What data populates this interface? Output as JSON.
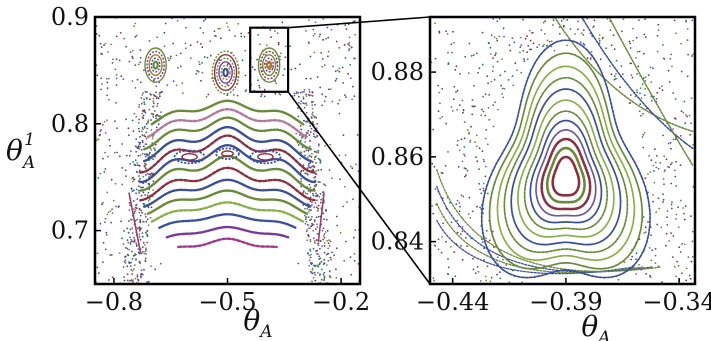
{
  "chart_data": [
    {
      "type": "scatter",
      "panel": "left",
      "description_kind": "Poincare section scatter (multiple colored orbit series)",
      "xlabel": "θ_A",
      "ylabel": "θ^1_A",
      "xlim": [
        -0.85,
        -0.15
      ],
      "ylim": [
        0.65,
        0.9
      ],
      "xticks": [
        {
          "value": -0.8,
          "label": "−0.8"
        },
        {
          "value": -0.5,
          "label": "−0.5"
        },
        {
          "value": -0.2,
          "label": "−0.2"
        }
      ],
      "yticks": [
        {
          "value": 0.9,
          "label": "0.9"
        },
        {
          "value": 0.8,
          "label": "0.8"
        },
        {
          "value": 0.7,
          "label": "0.7"
        }
      ],
      "grid": false,
      "islands": [
        {
          "center": [
            -0.69,
            0.855
          ],
          "rx": 0.028,
          "ry": 0.016,
          "rings": 5
        },
        {
          "center": [
            -0.505,
            0.848
          ],
          "rx": 0.035,
          "ry": 0.02,
          "rings": 6
        },
        {
          "center": [
            -0.39,
            0.855
          ],
          "rx": 0.028,
          "ry": 0.016,
          "rings": 5
        }
      ],
      "bands": [
        {
          "y": 0.815,
          "amp": 0.006,
          "x_range": [
            -0.7,
            -0.3
          ],
          "color": "#6a8a3a"
        },
        {
          "y": 0.806,
          "amp": 0.007,
          "x_range": [
            -0.71,
            -0.29
          ],
          "color": "#b07a9a"
        },
        {
          "y": 0.797,
          "amp": 0.008,
          "x_range": [
            -0.72,
            -0.28
          ],
          "color": "#6a8a3a"
        },
        {
          "y": 0.787,
          "amp": 0.009,
          "x_range": [
            -0.72,
            -0.28
          ],
          "color": "#3a4e9a"
        },
        {
          "y": 0.778,
          "amp": 0.01,
          "x_range": [
            -0.73,
            -0.27
          ],
          "color": "#8a3040"
        },
        {
          "y": 0.769,
          "amp": 0.01,
          "x_range": [
            -0.73,
            -0.27
          ],
          "color": "#3a4e9a"
        },
        {
          "y": 0.76,
          "amp": 0.009,
          "x_range": [
            -0.73,
            -0.27
          ],
          "color": "#6a8a3a"
        },
        {
          "y": 0.75,
          "amp": 0.008,
          "x_range": [
            -0.73,
            -0.27
          ],
          "color": "#8a3040"
        },
        {
          "y": 0.741,
          "amp": 0.006,
          "x_range": [
            -0.72,
            -0.28
          ],
          "color": "#3a4e9a"
        },
        {
          "y": 0.732,
          "amp": 0.005,
          "x_range": [
            -0.71,
            -0.29
          ],
          "color": "#6a8a3a"
        },
        {
          "y": 0.722,
          "amp": 0.004,
          "x_range": [
            -0.7,
            -0.3
          ],
          "color": "#8ab04a"
        },
        {
          "y": 0.712,
          "amp": 0.003,
          "x_range": [
            -0.68,
            -0.32
          ],
          "color": "#3a4e9a"
        },
        {
          "y": 0.7,
          "amp": 0.003,
          "x_range": [
            -0.66,
            -0.34
          ],
          "color": "#7a3a9a"
        },
        {
          "y": 0.688,
          "amp": 0.004,
          "x_range": [
            -0.63,
            -0.37
          ],
          "color": "#a03a8a"
        }
      ],
      "cat_eyes": [
        {
          "center": [
            -0.6,
            0.769
          ],
          "rx": 0.04,
          "ry": 0.006
        },
        {
          "center": [
            -0.4,
            0.769
          ],
          "rx": 0.04,
          "ry": 0.006
        },
        {
          "center": [
            -0.5,
            0.772
          ],
          "rx": 0.03,
          "ry": 0.005
        }
      ],
      "zoom_box": {
        "x": [
          -0.44,
          -0.34
        ],
        "y": [
          0.83,
          0.89
        ]
      }
    },
    {
      "type": "scatter",
      "panel": "right",
      "description_kind": "Zoomed Poincare section around an island",
      "xlabel": "θ_A",
      "ylabel": "",
      "xlim": [
        -0.45,
        -0.333
      ],
      "ylim": [
        0.83,
        0.893
      ],
      "xticks": [
        {
          "value": -0.44,
          "label": "−0.44"
        },
        {
          "value": -0.39,
          "label": "−0.39"
        },
        {
          "value": -0.34,
          "label": "−0.34"
        }
      ],
      "yticks": [
        {
          "value": 0.88,
          "label": "0.88"
        },
        {
          "value": 0.86,
          "label": "0.86"
        },
        {
          "value": 0.84,
          "label": "0.84"
        }
      ],
      "grid": false,
      "island_center": [
        -0.39,
        0.855
      ],
      "rings": [
        {
          "r": 0.17,
          "color": "#8a3040"
        },
        {
          "r": 0.24,
          "color": "#6a8a3a"
        },
        {
          "r": 0.31,
          "color": "#8a3040"
        },
        {
          "r": 0.38,
          "color": "#6a5a9a"
        },
        {
          "r": 0.45,
          "color": "#3a4e9a"
        },
        {
          "r": 0.52,
          "color": "#6a8a3a"
        },
        {
          "r": 0.6,
          "color": "#8ab04a"
        },
        {
          "r": 0.68,
          "color": "#3a4e9a"
        },
        {
          "r": 0.76,
          "color": "#6a8a3a"
        },
        {
          "r": 0.84,
          "color": "#8ab04a"
        },
        {
          "r": 0.93,
          "color": "#6a8a3a"
        },
        {
          "r": 1.02,
          "color": "#3a4e9a"
        }
      ],
      "ring_scale": {
        "rx": 0.033,
        "ry": 0.028
      }
    }
  ]
}
